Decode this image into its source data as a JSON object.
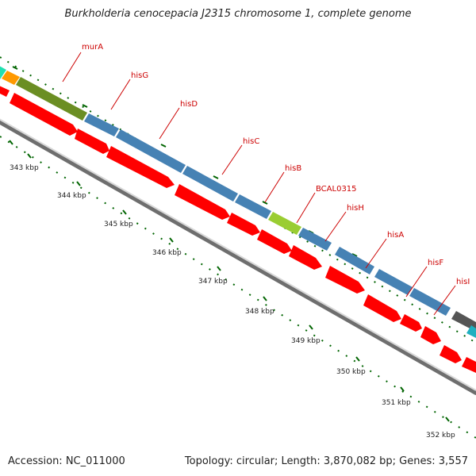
{
  "header": {
    "title": "Burkholderia cenocepacia J2315 chromosome 1, complete genome"
  },
  "footer": {
    "accession": "Accession: NC_011000",
    "topology": "Topology: circular; Length: 3,870,082 bp; Genes: 3,557"
  },
  "map": {
    "ticks": [
      {
        "label": "343 kbp"
      },
      {
        "label": "344 kbp"
      },
      {
        "label": "345 kbp"
      },
      {
        "label": "346 kbp"
      },
      {
        "label": "347 kbp"
      },
      {
        "label": "348 kbp"
      },
      {
        "label": "349 kbp"
      },
      {
        "label": "350 kbp"
      },
      {
        "label": "351 kbp"
      },
      {
        "label": "352 kbp"
      }
    ],
    "genes": [
      {
        "label": "murA",
        "color": "#6b8e23"
      },
      {
        "label": "hisG",
        "color": "#4682b4"
      },
      {
        "label": "hisD",
        "color": "#4682b4"
      },
      {
        "label": "hisC",
        "color": "#4682b4"
      },
      {
        "label": "hisB",
        "color": "#4682b4"
      },
      {
        "label": "BCAL0315",
        "color": "#9acd32"
      },
      {
        "label": "hisH",
        "color": "#4682b4"
      },
      {
        "label": "hisA",
        "color": "#4682b4"
      },
      {
        "label": "hisF",
        "color": "#4682b4"
      },
      {
        "label": "hisI",
        "color": "#4682b4"
      }
    ],
    "colors": {
      "cds_strand": "#ff0000",
      "label_line": "#cc0000",
      "backbone": "#888888",
      "tick_marks": "#006400"
    }
  }
}
